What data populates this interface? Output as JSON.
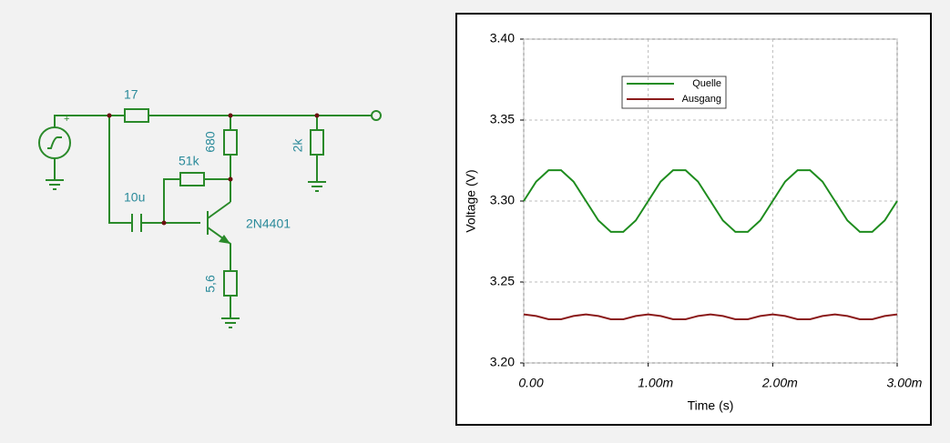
{
  "circuit": {
    "labels": {
      "r1": "17",
      "r2": "680",
      "r3": "2k",
      "r4": "51k",
      "c1": "10u",
      "q1": "2N4401",
      "r5": "5,6"
    }
  },
  "chart_data": {
    "type": "line",
    "x_label": "Time (s)",
    "y_label": "Voltage (V)",
    "x": [
      0,
      0.0001,
      0.0002,
      0.0003,
      0.0004,
      0.0005,
      0.0006,
      0.0007,
      0.0008,
      0.0009,
      0.001,
      0.0011,
      0.0012,
      0.0013,
      0.0014,
      0.0015,
      0.0016,
      0.0017,
      0.0018,
      0.0019,
      0.002,
      0.0021,
      0.0022,
      0.0023,
      0.0024,
      0.0025,
      0.0026,
      0.0027,
      0.0028,
      0.0029,
      0.003
    ],
    "series": [
      {
        "name": "Quelle",
        "color": "#1e8c1e",
        "values": [
          3.3,
          3.312,
          3.319,
          3.319,
          3.312,
          3.3,
          3.288,
          3.281,
          3.281,
          3.288,
          3.3,
          3.312,
          3.319,
          3.319,
          3.312,
          3.3,
          3.288,
          3.281,
          3.281,
          3.288,
          3.3,
          3.312,
          3.319,
          3.319,
          3.312,
          3.3,
          3.288,
          3.281,
          3.281,
          3.288,
          3.3
        ]
      },
      {
        "name": "Ausgang",
        "color": "#8b1a1a",
        "values": [
          3.23,
          3.229,
          3.227,
          3.227,
          3.229,
          3.23,
          3.229,
          3.227,
          3.227,
          3.229,
          3.23,
          3.229,
          3.227,
          3.227,
          3.229,
          3.23,
          3.229,
          3.227,
          3.227,
          3.229,
          3.23,
          3.229,
          3.227,
          3.227,
          3.229,
          3.23,
          3.229,
          3.227,
          3.227,
          3.229,
          3.23
        ]
      }
    ],
    "xlim": [
      0,
      0.003
    ],
    "xticks": [
      {
        "value": 0,
        "label": "0.00"
      },
      {
        "value": 0.001,
        "label": "1.00m"
      },
      {
        "value": 0.002,
        "label": "2.00m"
      },
      {
        "value": 0.003,
        "label": "3.00m"
      }
    ],
    "ylim": [
      3.2,
      3.4
    ],
    "yticks": [
      {
        "value": 3.2,
        "label": "3.20"
      },
      3.25,
      {
        "value": 3.3,
        "label": "3.30"
      },
      3.35,
      {
        "value": 3.4,
        "label": "3.40"
      }
    ],
    "grid": true
  }
}
